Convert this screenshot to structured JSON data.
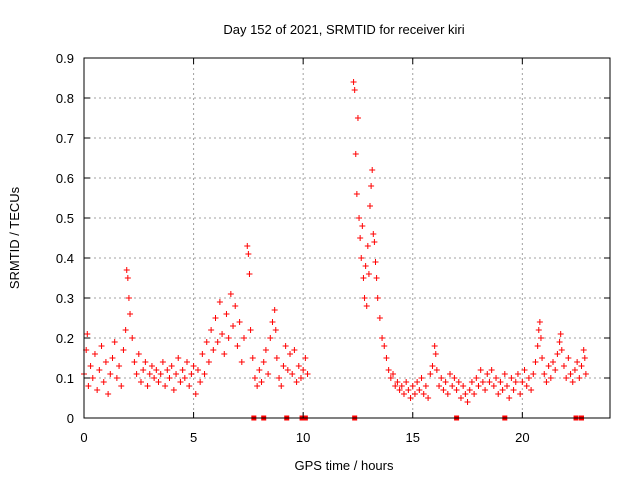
{
  "chart_data": {
    "type": "scatter",
    "title": "Day 152 of 2021, SRMTID for receiver kiri",
    "xlabel": "GPS time / hours",
    "ylabel": "SRMTID / TECUs",
    "xlim": [
      0,
      24
    ],
    "ylim": [
      0,
      0.9
    ],
    "grid": true,
    "marker": "+",
    "color": "#ff0000",
    "x_ticks": [
      {
        "value": 0,
        "label": "0"
      },
      {
        "value": 5,
        "label": "5"
      },
      {
        "value": 10,
        "label": "10"
      },
      {
        "value": 15,
        "label": "15"
      },
      {
        "value": 20,
        "label": "20"
      }
    ],
    "y_ticks": [
      {
        "value": 0,
        "label": "0"
      },
      {
        "value": 0.1,
        "label": "0.1"
      },
      {
        "value": 0.2,
        "label": "0.2"
      },
      {
        "value": 0.3,
        "label": "0.3"
      },
      {
        "value": 0.4,
        "label": "0.4"
      },
      {
        "value": 0.5,
        "label": "0.5"
      },
      {
        "value": 0.6,
        "label": "0.6"
      },
      {
        "value": 0.7,
        "label": "0.7"
      },
      {
        "value": 0.8,
        "label": "0.8"
      },
      {
        "value": 0.9,
        "label": "0.9"
      }
    ],
    "series": [
      {
        "name": "SRMTID",
        "points": [
          [
            0.0,
            0.11
          ],
          [
            0.1,
            0.17
          ],
          [
            0.15,
            0.21
          ],
          [
            0.2,
            0.08
          ],
          [
            0.3,
            0.13
          ],
          [
            0.4,
            0.1
          ],
          [
            0.5,
            0.16
          ],
          [
            0.6,
            0.07
          ],
          [
            0.7,
            0.12
          ],
          [
            0.8,
            0.18
          ],
          [
            0.9,
            0.09
          ],
          [
            1.0,
            0.14
          ],
          [
            1.1,
            0.06
          ],
          [
            1.2,
            0.11
          ],
          [
            1.3,
            0.15
          ],
          [
            1.4,
            0.19
          ],
          [
            1.5,
            0.1
          ],
          [
            1.6,
            0.13
          ],
          [
            1.7,
            0.08
          ],
          [
            1.8,
            0.17
          ],
          [
            1.9,
            0.22
          ],
          [
            1.95,
            0.37
          ],
          [
            2.0,
            0.35
          ],
          [
            2.05,
            0.3
          ],
          [
            2.1,
            0.26
          ],
          [
            2.2,
            0.2
          ],
          [
            2.3,
            0.14
          ],
          [
            2.4,
            0.11
          ],
          [
            2.5,
            0.16
          ],
          [
            2.6,
            0.09
          ],
          [
            2.7,
            0.12
          ],
          [
            2.8,
            0.14
          ],
          [
            2.9,
            0.08
          ],
          [
            3.0,
            0.11
          ],
          [
            3.1,
            0.13
          ],
          [
            3.2,
            0.1
          ],
          [
            3.3,
            0.12
          ],
          [
            3.4,
            0.09
          ],
          [
            3.5,
            0.11
          ],
          [
            3.6,
            0.14
          ],
          [
            3.7,
            0.08
          ],
          [
            3.8,
            0.12
          ],
          [
            3.9,
            0.1
          ],
          [
            4.0,
            0.13
          ],
          [
            4.1,
            0.07
          ],
          [
            4.2,
            0.11
          ],
          [
            4.3,
            0.15
          ],
          [
            4.4,
            0.09
          ],
          [
            4.5,
            0.12
          ],
          [
            4.6,
            0.1
          ],
          [
            4.7,
            0.14
          ],
          [
            4.8,
            0.08
          ],
          [
            4.9,
            0.11
          ],
          [
            5.0,
            0.13
          ],
          [
            5.1,
            0.06
          ],
          [
            5.2,
            0.12
          ],
          [
            5.3,
            0.09
          ],
          [
            5.4,
            0.16
          ],
          [
            5.5,
            0.11
          ],
          [
            5.6,
            0.19
          ],
          [
            5.7,
            0.14
          ],
          [
            5.8,
            0.22
          ],
          [
            5.9,
            0.17
          ],
          [
            6.0,
            0.25
          ],
          [
            6.1,
            0.19
          ],
          [
            6.2,
            0.29
          ],
          [
            6.3,
            0.21
          ],
          [
            6.4,
            0.16
          ],
          [
            6.5,
            0.26
          ],
          [
            6.6,
            0.2
          ],
          [
            6.7,
            0.31
          ],
          [
            6.8,
            0.23
          ],
          [
            6.9,
            0.28
          ],
          [
            7.0,
            0.18
          ],
          [
            7.1,
            0.24
          ],
          [
            7.2,
            0.14
          ],
          [
            7.3,
            0.2
          ],
          [
            7.45,
            0.43
          ],
          [
            7.5,
            0.41
          ],
          [
            7.55,
            0.36
          ],
          [
            7.6,
            0.22
          ],
          [
            7.7,
            0.15
          ],
          [
            7.8,
            0.1
          ],
          [
            7.9,
            0.08
          ],
          [
            8.0,
            0.12
          ],
          [
            8.1,
            0.09
          ],
          [
            8.2,
            0.14
          ],
          [
            8.3,
            0.17
          ],
          [
            8.4,
            0.11
          ],
          [
            8.5,
            0.2
          ],
          [
            8.6,
            0.24
          ],
          [
            8.7,
            0.27
          ],
          [
            8.75,
            0.22
          ],
          [
            8.8,
            0.15
          ],
          [
            8.9,
            0.1
          ],
          [
            9.0,
            0.08
          ],
          [
            9.1,
            0.13
          ],
          [
            9.2,
            0.18
          ],
          [
            9.3,
            0.12
          ],
          [
            9.4,
            0.16
          ],
          [
            9.5,
            0.11
          ],
          [
            9.6,
            0.17
          ],
          [
            9.7,
            0.09
          ],
          [
            9.8,
            0.13
          ],
          [
            9.9,
            0.1
          ],
          [
            10.0,
            0.12
          ],
          [
            10.1,
            0.15
          ],
          [
            10.2,
            0.11
          ],
          [
            12.3,
            0.84
          ],
          [
            12.35,
            0.82
          ],
          [
            12.4,
            0.66
          ],
          [
            12.45,
            0.56
          ],
          [
            12.5,
            0.75
          ],
          [
            12.55,
            0.5
          ],
          [
            12.6,
            0.45
          ],
          [
            12.65,
            0.4
          ],
          [
            12.7,
            0.48
          ],
          [
            12.75,
            0.35
          ],
          [
            12.8,
            0.3
          ],
          [
            12.85,
            0.38
          ],
          [
            12.9,
            0.28
          ],
          [
            12.95,
            0.43
          ],
          [
            13.0,
            0.36
          ],
          [
            13.05,
            0.53
          ],
          [
            13.1,
            0.58
          ],
          [
            13.15,
            0.62
          ],
          [
            13.2,
            0.46
          ],
          [
            13.25,
            0.44
          ],
          [
            13.3,
            0.39
          ],
          [
            13.35,
            0.35
          ],
          [
            13.4,
            0.3
          ],
          [
            13.5,
            0.25
          ],
          [
            13.6,
            0.2
          ],
          [
            13.7,
            0.18
          ],
          [
            13.8,
            0.15
          ],
          [
            13.9,
            0.12
          ],
          [
            14.0,
            0.1
          ],
          [
            14.1,
            0.11
          ],
          [
            14.2,
            0.08
          ],
          [
            14.3,
            0.09
          ],
          [
            14.4,
            0.07
          ],
          [
            14.5,
            0.08
          ],
          [
            14.6,
            0.06
          ],
          [
            14.7,
            0.09
          ],
          [
            14.8,
            0.07
          ],
          [
            14.9,
            0.05
          ],
          [
            15.0,
            0.08
          ],
          [
            15.1,
            0.06
          ],
          [
            15.2,
            0.09
          ],
          [
            15.3,
            0.07
          ],
          [
            15.4,
            0.1
          ],
          [
            15.5,
            0.06
          ],
          [
            15.6,
            0.08
          ],
          [
            15.7,
            0.05
          ],
          [
            15.8,
            0.11
          ],
          [
            15.9,
            0.13
          ],
          [
            16.0,
            0.18
          ],
          [
            16.05,
            0.16
          ],
          [
            16.1,
            0.12
          ],
          [
            16.2,
            0.08
          ],
          [
            16.3,
            0.1
          ],
          [
            16.4,
            0.07
          ],
          [
            16.5,
            0.09
          ],
          [
            16.6,
            0.06
          ],
          [
            16.7,
            0.11
          ],
          [
            16.8,
            0.08
          ],
          [
            16.9,
            0.1
          ],
          [
            17.0,
            0.07
          ],
          [
            17.1,
            0.09
          ],
          [
            17.2,
            0.05
          ],
          [
            17.3,
            0.08
          ],
          [
            17.4,
            0.06
          ],
          [
            17.5,
            0.04
          ],
          [
            17.6,
            0.07
          ],
          [
            17.7,
            0.09
          ],
          [
            17.8,
            0.06
          ],
          [
            17.9,
            0.1
          ],
          [
            18.0,
            0.08
          ],
          [
            18.1,
            0.12
          ],
          [
            18.2,
            0.09
          ],
          [
            18.3,
            0.07
          ],
          [
            18.4,
            0.11
          ],
          [
            18.5,
            0.09
          ],
          [
            18.6,
            0.12
          ],
          [
            18.7,
            0.08
          ],
          [
            18.8,
            0.1
          ],
          [
            18.9,
            0.06
          ],
          [
            19.0,
            0.09
          ],
          [
            19.1,
            0.07
          ],
          [
            19.2,
            0.11
          ],
          [
            19.3,
            0.08
          ],
          [
            19.4,
            0.05
          ],
          [
            19.5,
            0.1
          ],
          [
            19.6,
            0.07
          ],
          [
            19.7,
            0.09
          ],
          [
            19.8,
            0.11
          ],
          [
            19.9,
            0.06
          ],
          [
            20.0,
            0.09
          ],
          [
            20.1,
            0.12
          ],
          [
            20.2,
            0.08
          ],
          [
            20.3,
            0.1
          ],
          [
            20.4,
            0.07
          ],
          [
            20.5,
            0.11
          ],
          [
            20.6,
            0.14
          ],
          [
            20.7,
            0.18
          ],
          [
            20.75,
            0.22
          ],
          [
            20.8,
            0.24
          ],
          [
            20.85,
            0.2
          ],
          [
            20.9,
            0.15
          ],
          [
            21.0,
            0.11
          ],
          [
            21.1,
            0.09
          ],
          [
            21.2,
            0.13
          ],
          [
            21.3,
            0.1
          ],
          [
            21.4,
            0.14
          ],
          [
            21.5,
            0.12
          ],
          [
            21.6,
            0.16
          ],
          [
            21.7,
            0.19
          ],
          [
            21.75,
            0.21
          ],
          [
            21.8,
            0.17
          ],
          [
            21.9,
            0.13
          ],
          [
            22.0,
            0.1
          ],
          [
            22.1,
            0.15
          ],
          [
            22.2,
            0.11
          ],
          [
            22.3,
            0.09
          ],
          [
            22.4,
            0.12
          ],
          [
            22.5,
            0.14
          ],
          [
            22.6,
            0.1
          ],
          [
            22.7,
            0.13
          ],
          [
            22.8,
            0.17
          ],
          [
            22.85,
            0.15
          ],
          [
            22.9,
            0.11
          ]
        ]
      }
    ],
    "gap_markers_x": [
      7.75,
      8.2,
      9.25,
      9.95,
      10.1,
      12.35,
      17.0,
      19.2,
      22.45,
      22.7
    ]
  }
}
